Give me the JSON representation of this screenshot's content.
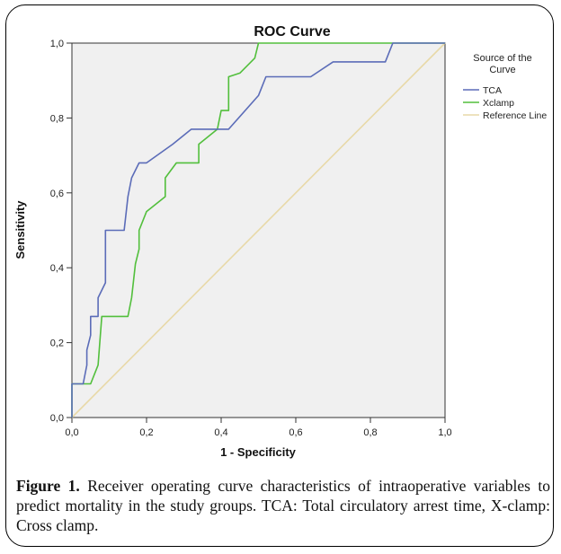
{
  "colors": {
    "tca": "#5b6cb8",
    "xclamp": "#52bf3c",
    "reference": "#e8d9a8",
    "plot_bg": "#f0f0f0"
  },
  "caption": {
    "label": "Figure 1.",
    "text": " Receiver operating curve characteristics of intraoperative variables to predict mortality in the study groups. TCA: Total circulatory arrest time, X-clamp: Cross clamp."
  },
  "chart_data": {
    "type": "line",
    "title": "ROC Curve",
    "xlabel": "1 - Specificity",
    "ylabel": "Sensitivity",
    "xlim": [
      0,
      1
    ],
    "ylim": [
      0,
      1
    ],
    "xticks": [
      0,
      0.2,
      0.4,
      0.6,
      0.8,
      1.0
    ],
    "yticks": [
      0,
      0.2,
      0.4,
      0.6,
      0.8,
      1.0
    ],
    "xtick_labels": [
      "0,0",
      "0,2",
      "0,4",
      "0,6",
      "0,8",
      "1,0"
    ],
    "ytick_labels": [
      "0,0",
      "0,2",
      "0,4",
      "0,6",
      "0,8",
      "1,0"
    ],
    "grid": false,
    "legend": {
      "title": "Source of the Curve",
      "placement": "right"
    },
    "series": [
      {
        "name": "TCA",
        "points": [
          [
            0,
            0
          ],
          [
            0,
            0.09
          ],
          [
            0.03,
            0.09
          ],
          [
            0.04,
            0.14
          ],
          [
            0.04,
            0.18
          ],
          [
            0.05,
            0.22
          ],
          [
            0.05,
            0.27
          ],
          [
            0.07,
            0.27
          ],
          [
            0.07,
            0.32
          ],
          [
            0.09,
            0.36
          ],
          [
            0.09,
            0.5
          ],
          [
            0.14,
            0.5
          ],
          [
            0.15,
            0.59
          ],
          [
            0.16,
            0.64
          ],
          [
            0.18,
            0.68
          ],
          [
            0.2,
            0.68
          ],
          [
            0.27,
            0.73
          ],
          [
            0.32,
            0.77
          ],
          [
            0.42,
            0.77
          ],
          [
            0.5,
            0.86
          ],
          [
            0.52,
            0.91
          ],
          [
            0.64,
            0.91
          ],
          [
            0.7,
            0.95
          ],
          [
            0.84,
            0.95
          ],
          [
            0.86,
            1
          ],
          [
            1,
            1
          ]
        ]
      },
      {
        "name": "Xclamp",
        "points": [
          [
            0,
            0
          ],
          [
            0,
            0.09
          ],
          [
            0.05,
            0.09
          ],
          [
            0.07,
            0.14
          ],
          [
            0.08,
            0.27
          ],
          [
            0.15,
            0.27
          ],
          [
            0.16,
            0.32
          ],
          [
            0.17,
            0.41
          ],
          [
            0.18,
            0.45
          ],
          [
            0.18,
            0.5
          ],
          [
            0.2,
            0.55
          ],
          [
            0.25,
            0.59
          ],
          [
            0.25,
            0.64
          ],
          [
            0.28,
            0.68
          ],
          [
            0.34,
            0.68
          ],
          [
            0.34,
            0.73
          ],
          [
            0.39,
            0.77
          ],
          [
            0.4,
            0.82
          ],
          [
            0.42,
            0.82
          ],
          [
            0.42,
            0.91
          ],
          [
            0.45,
            0.92
          ],
          [
            0.49,
            0.96
          ],
          [
            0.5,
            1
          ],
          [
            1,
            1
          ]
        ]
      },
      {
        "name": "Reference Line",
        "points": [
          [
            0,
            0
          ],
          [
            1,
            1
          ]
        ]
      }
    ]
  }
}
